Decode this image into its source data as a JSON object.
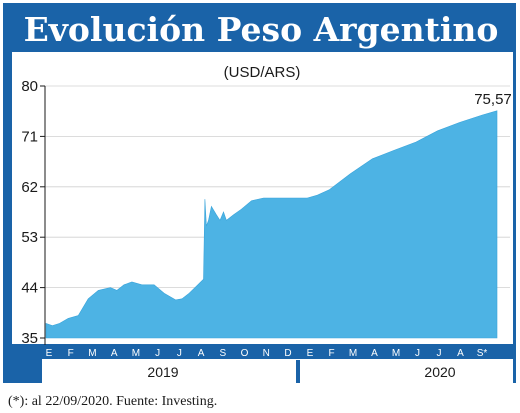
{
  "chart_data": {
    "type": "area",
    "title": "Evolución Peso Argentino",
    "subtitle": "(USD/ARS)",
    "yticks": [
      "35",
      "44",
      "53",
      "62",
      "71",
      "80"
    ],
    "ylim": [
      35,
      80
    ],
    "months": {
      "2019": [
        "E",
        "F",
        "M",
        "A",
        "M",
        "J",
        "J",
        "A",
        "S",
        "O",
        "N",
        "D"
      ],
      "2020": [
        "E",
        "F",
        "M",
        "A",
        "M",
        "J",
        "J",
        "A",
        "S*"
      ]
    },
    "years": [
      "2019",
      "2020"
    ],
    "last_value_label": "75,57",
    "series": [
      {
        "x": [
          "2019-01-01",
          "2019-01-10",
          "2019-01-20",
          "2019-02-01",
          "2019-02-15",
          "2019-03-01",
          "2019-03-15",
          "2019-04-01",
          "2019-04-10",
          "2019-04-20",
          "2019-05-01",
          "2019-05-15",
          "2019-06-01",
          "2019-06-15",
          "2019-07-01",
          "2019-07-10",
          "2019-07-20",
          "2019-08-01",
          "2019-08-09",
          "2019-08-11",
          "2019-08-13",
          "2019-08-16",
          "2019-08-20",
          "2019-08-27",
          "2019-09-01",
          "2019-09-06",
          "2019-09-10",
          "2019-09-20",
          "2019-10-01",
          "2019-10-15",
          "2019-11-01",
          "2019-11-15",
          "2019-12-01",
          "2019-12-15",
          "2020-01-01",
          "2020-01-15",
          "2020-02-01",
          "2020-03-01",
          "2020-04-01",
          "2020-05-01",
          "2020-06-01",
          "2020-07-01",
          "2020-08-01",
          "2020-09-01",
          "2020-09-22"
        ],
        "y": [
          37.6,
          37.2,
          37.6,
          38.5,
          39.0,
          42.0,
          43.5,
          44.0,
          43.5,
          44.5,
          45.0,
          44.5,
          44.5,
          43.0,
          41.8,
          42.0,
          43.0,
          44.5,
          45.5,
          59.8,
          55.0,
          56.0,
          58.5,
          57.0,
          56.0,
          57.5,
          56.0,
          57.0,
          58.0,
          59.5,
          60.0,
          60.0,
          60.0,
          60.0,
          60.0,
          60.5,
          61.5,
          64.3,
          67.0,
          68.5,
          70.0,
          72.0,
          73.5,
          74.8,
          75.57
        ]
      }
    ],
    "source": "(*): al 22/09/2020. Fuente: Investing."
  }
}
